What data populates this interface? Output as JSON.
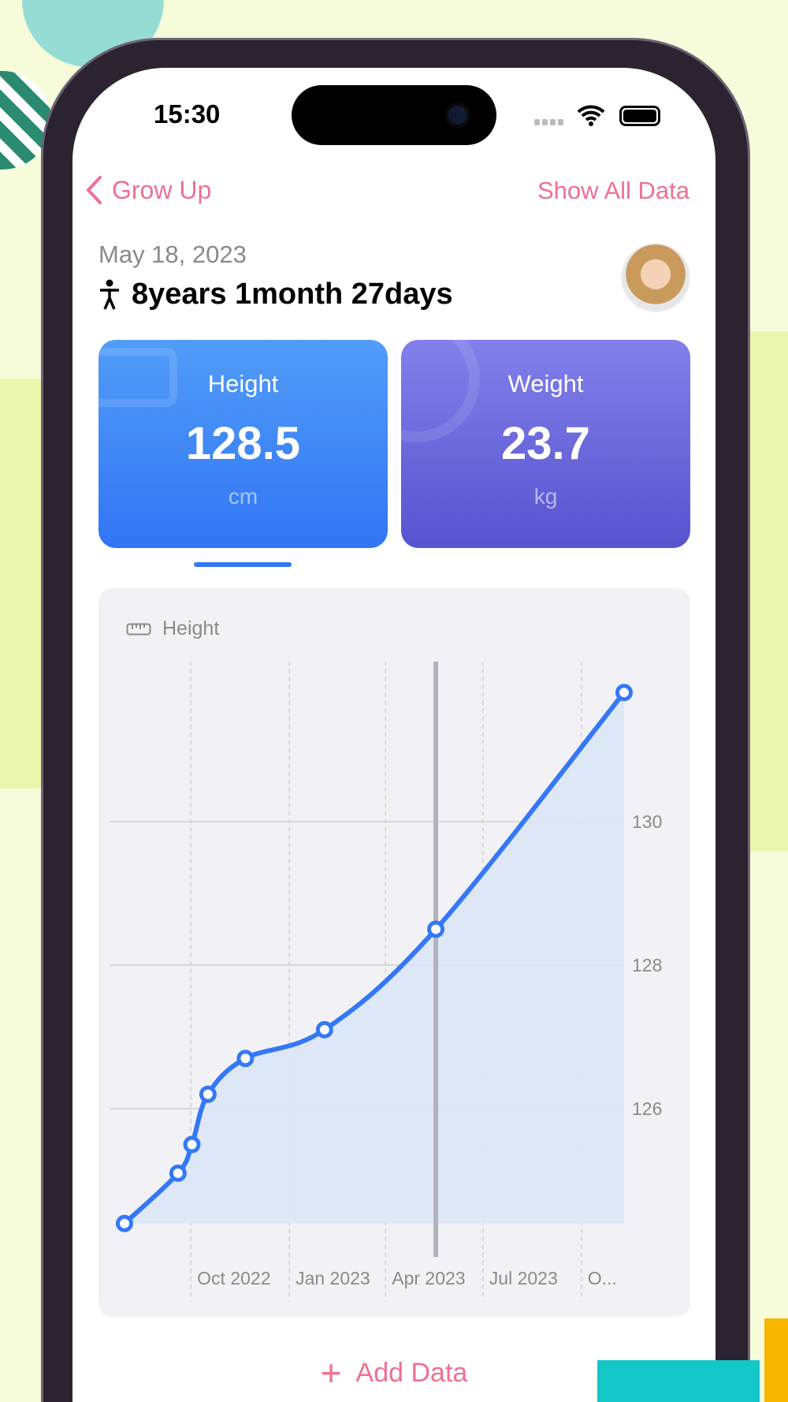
{
  "status_bar": {
    "time": "15:30"
  },
  "nav": {
    "back_label": "Grow Up",
    "right_label": "Show All Data"
  },
  "profile": {
    "date": "May 18, 2023",
    "age": "8years 1month 27days"
  },
  "cards": [
    {
      "label": "Height",
      "value": "128.5",
      "unit": "cm",
      "selected": true
    },
    {
      "label": "Weight",
      "value": "23.7",
      "unit": "kg",
      "selected": false
    }
  ],
  "chart_data": {
    "type": "area",
    "legend": "Height",
    "x_ticks": [
      "Oct 2022",
      "Jan 2023",
      "Apr 2023",
      "Jul 2023",
      "O..."
    ],
    "x_tick_dates": [
      "2022-10-01",
      "2023-01-01",
      "2023-04-01",
      "2023-07-01",
      "2023-10-01"
    ],
    "y_ticks": [
      126,
      128,
      130
    ],
    "ylim": [
      124.4,
      132.5
    ],
    "xlim": [
      "2022-07-31",
      "2023-11-10"
    ],
    "grid": true,
    "selected_date": "2023-05-18",
    "series": [
      {
        "points": [
          {
            "x": "2022-07-31",
            "y": 124.4
          },
          {
            "x": "2022-09-19",
            "y": 125.1
          },
          {
            "x": "2022-10-02",
            "y": 125.5
          },
          {
            "x": "2022-10-17",
            "y": 126.2
          },
          {
            "x": "2022-11-21",
            "y": 126.7
          },
          {
            "x": "2023-02-03",
            "y": 127.1
          },
          {
            "x": "2023-05-18",
            "y": 128.5
          },
          {
            "x": "2023-11-10",
            "y": 131.8
          }
        ]
      }
    ],
    "colors": {
      "line": "#3478f6",
      "fill": "#dce5f6",
      "selection": "#b2b2ba"
    }
  },
  "footer": {
    "add_label": "Add Data"
  },
  "colors": {
    "accent": "#ee7092",
    "height": "#3478f6",
    "weight": "#5a55d0"
  }
}
